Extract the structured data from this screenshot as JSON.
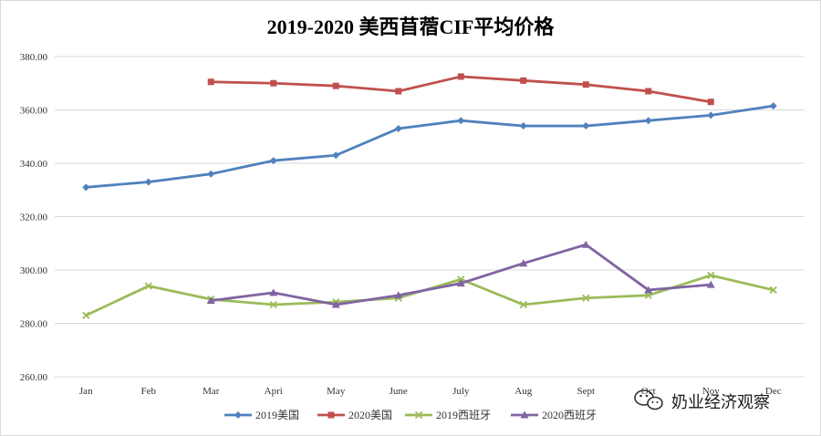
{
  "chart_data": {
    "type": "line",
    "title": "2019-2020  美西苜蓿CIF平均价格",
    "categories": [
      "Jan",
      "Feb",
      "Mar",
      "Apri",
      "May",
      "June",
      "July",
      "Aug",
      "Sept",
      "Oct",
      "Nov",
      "Dec"
    ],
    "ylim": [
      260,
      380
    ],
    "yticks": [
      "260.00",
      "280.00",
      "300.00",
      "320.00",
      "340.00",
      "360.00",
      "380.00"
    ],
    "grid": true,
    "legend_position": "bottom",
    "series": [
      {
        "name": "2019美国",
        "color": "#4F81BD",
        "marker": "diamond",
        "values": [
          331,
          333,
          336,
          341,
          343,
          353,
          356,
          354,
          354,
          356,
          358,
          361.5
        ]
      },
      {
        "name": "2020美国",
        "color": "#C0504D",
        "marker": "square",
        "values": [
          null,
          null,
          370.5,
          370,
          369,
          367,
          372.5,
          371,
          369.5,
          367,
          363,
          null
        ]
      },
      {
        "name": "2019西班牙",
        "color": "#9BBB59",
        "marker": "x",
        "values": [
          283,
          294,
          289,
          287,
          288,
          289.5,
          296.5,
          287,
          289.5,
          290.5,
          298,
          292.5
        ]
      },
      {
        "name": "2020西班牙",
        "color": "#8064A2",
        "marker": "triangle",
        "values": [
          null,
          null,
          288.5,
          291.5,
          287,
          290.5,
          295,
          302.5,
          309.5,
          292.5,
          294.5,
          null
        ]
      }
    ]
  },
  "watermark": {
    "text": "奶业经济观察",
    "icon": "wechat-icon"
  }
}
